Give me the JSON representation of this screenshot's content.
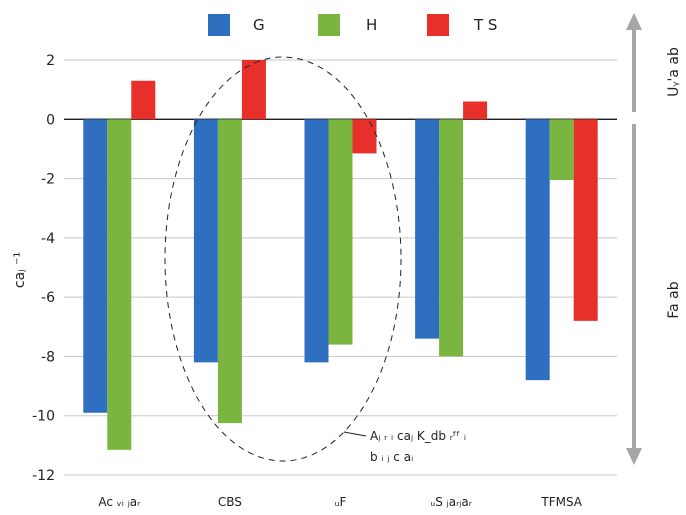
{
  "chart_data": {
    "type": "bar",
    "categories": [
      "Ac ᵥᵢ ⱼaᵣ",
      "CBS",
      "ᵤF",
      "ᵤS ⱼaᵣⱼaᵣ",
      "TFMSA"
    ],
    "series": [
      {
        "name": "G",
        "color": "#2f6fc0",
        "values": [
          -9.9,
          -8.2,
          -8.2,
          -7.4,
          -8.8
        ]
      },
      {
        "name": "H",
        "color": "#7ab540",
        "values": [
          -11.15,
          -10.25,
          -7.6,
          -8.0,
          -2.05
        ]
      },
      {
        "name": "T S",
        "color": "#e8302a",
        "values": [
          1.3,
          2.0,
          -1.15,
          0.6,
          -6.8
        ]
      }
    ],
    "ylabel": "caⱼ ⁻¹",
    "ylim": [
      -12,
      2
    ],
    "yticks": [
      2,
      0,
      -2,
      -4,
      -6,
      -8,
      -10,
      -12
    ],
    "grid": true,
    "legend_position": "top",
    "side_labels": {
      "upper": "Uᵧ'a ab",
      "lower": "Fa ab"
    },
    "annotation": {
      "line1": "Aⱼ ᵣ ᵢ caⱼ K_db ᵣᶠᶠ ᵢ",
      "line2": "b ᵢ ⱼ c aᵢ"
    }
  }
}
